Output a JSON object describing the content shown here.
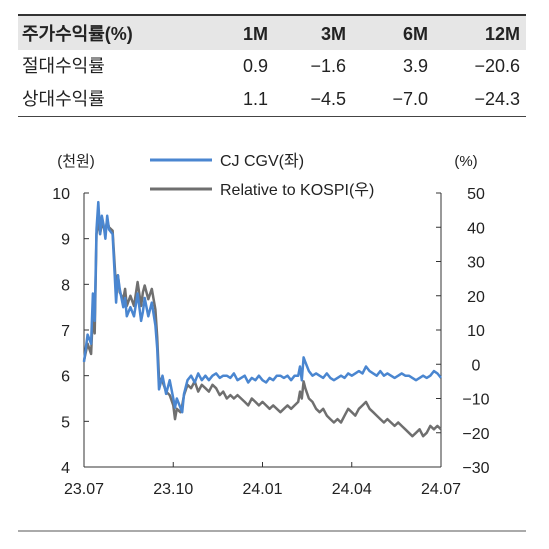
{
  "table": {
    "headers": [
      "주가수익률(%)",
      "1M",
      "3M",
      "6M",
      "12M"
    ],
    "rows": [
      {
        "label": "절대수익률",
        "values": [
          "0.9",
          "−1.6",
          "3.9",
          "−20.6"
        ]
      },
      {
        "label": "상대수익률",
        "values": [
          "1.1",
          "−4.5",
          "−7.0",
          "−24.3"
        ]
      }
    ]
  },
  "chart_data": {
    "type": "line",
    "left_unit": "(천원)",
    "right_unit": "(%)",
    "left_axis": {
      "range": [
        4,
        10
      ],
      "ticks": [
        "4",
        "5",
        "6",
        "7",
        "8",
        "9",
        "10"
      ]
    },
    "right_axis": {
      "range": [
        -30,
        50
      ],
      "ticks": [
        "−30",
        "−20",
        "−10",
        "0",
        "10",
        "20",
        "30",
        "40",
        "50"
      ]
    },
    "x_ticks": [
      {
        "label": "23.07",
        "t": 0.0
      },
      {
        "label": "23.10",
        "t": 0.25
      },
      {
        "label": "24.01",
        "t": 0.5
      },
      {
        "label": "24.04",
        "t": 0.75
      },
      {
        "label": "24.07",
        "t": 1.0
      }
    ],
    "series": [
      {
        "name": "CJ CGV(좌)",
        "axis": "left",
        "color": "#4a86d0",
        "points": [
          [
            0,
            6.3
          ],
          [
            0.01,
            6.9
          ],
          [
            0.02,
            6.7
          ],
          [
            0.025,
            7.8
          ],
          [
            0.03,
            7.2
          ],
          [
            0.035,
            9.2
          ],
          [
            0.04,
            9.8
          ],
          [
            0.045,
            9.1
          ],
          [
            0.05,
            9.5
          ],
          [
            0.055,
            9.3
          ],
          [
            0.06,
            9.0
          ],
          [
            0.065,
            9.5
          ],
          [
            0.07,
            9.2
          ],
          [
            0.08,
            9.1
          ],
          [
            0.09,
            7.6
          ],
          [
            0.095,
            8.2
          ],
          [
            0.1,
            7.9
          ],
          [
            0.11,
            7.5
          ],
          [
            0.115,
            7.7
          ],
          [
            0.12,
            7.3
          ],
          [
            0.13,
            7.5
          ],
          [
            0.14,
            7.3
          ],
          [
            0.15,
            7.8
          ],
          [
            0.16,
            7.2
          ],
          [
            0.165,
            7.4
          ],
          [
            0.17,
            7.7
          ],
          [
            0.18,
            7.3
          ],
          [
            0.19,
            7.6
          ],
          [
            0.2,
            7.1
          ],
          [
            0.205,
            6.6
          ],
          [
            0.21,
            5.7
          ],
          [
            0.22,
            6.0
          ],
          [
            0.23,
            5.6
          ],
          [
            0.24,
            5.9
          ],
          [
            0.25,
            5.5
          ],
          [
            0.255,
            5.3
          ],
          [
            0.26,
            5.5
          ],
          [
            0.27,
            5.3
          ],
          [
            0.275,
            5.2
          ],
          [
            0.28,
            5.6
          ],
          [
            0.29,
            5.9
          ],
          [
            0.3,
            6.0
          ],
          [
            0.31,
            5.85
          ],
          [
            0.32,
            6.05
          ],
          [
            0.33,
            5.9
          ],
          [
            0.34,
            6.0
          ],
          [
            0.35,
            5.9
          ],
          [
            0.36,
            6.0
          ],
          [
            0.37,
            6.05
          ],
          [
            0.38,
            5.95
          ],
          [
            0.39,
            6.0
          ],
          [
            0.4,
            6.0
          ],
          [
            0.41,
            5.95
          ],
          [
            0.42,
            6.05
          ],
          [
            0.43,
            5.9
          ],
          [
            0.44,
            5.95
          ],
          [
            0.45,
            6.0
          ],
          [
            0.46,
            5.85
          ],
          [
            0.47,
            5.95
          ],
          [
            0.48,
            5.9
          ],
          [
            0.49,
            6.0
          ],
          [
            0.5,
            5.9
          ],
          [
            0.51,
            5.85
          ],
          [
            0.52,
            5.95
          ],
          [
            0.53,
            5.9
          ],
          [
            0.54,
            6.0
          ],
          [
            0.55,
            6.0
          ],
          [
            0.56,
            5.95
          ],
          [
            0.57,
            6.0
          ],
          [
            0.58,
            5.9
          ],
          [
            0.59,
            6.0
          ],
          [
            0.6,
            6.0
          ],
          [
            0.605,
            6.2
          ],
          [
            0.61,
            5.9
          ],
          [
            0.615,
            6.4
          ],
          [
            0.62,
            6.3
          ],
          [
            0.63,
            6.1
          ],
          [
            0.64,
            6.0
          ],
          [
            0.65,
            6.05
          ],
          [
            0.66,
            6.0
          ],
          [
            0.67,
            5.95
          ],
          [
            0.68,
            6.05
          ],
          [
            0.69,
            5.95
          ],
          [
            0.7,
            5.9
          ],
          [
            0.71,
            5.95
          ],
          [
            0.72,
            6.0
          ],
          [
            0.73,
            5.95
          ],
          [
            0.74,
            6.05
          ],
          [
            0.75,
            6.0
          ],
          [
            0.76,
            6.05
          ],
          [
            0.77,
            6.1
          ],
          [
            0.78,
            6.05
          ],
          [
            0.79,
            6.2
          ],
          [
            0.8,
            6.1
          ],
          [
            0.81,
            6.05
          ],
          [
            0.82,
            6.0
          ],
          [
            0.83,
            6.1
          ],
          [
            0.84,
            6.0
          ],
          [
            0.85,
            6.05
          ],
          [
            0.86,
            6.0
          ],
          [
            0.87,
            5.95
          ],
          [
            0.88,
            6.0
          ],
          [
            0.89,
            6.05
          ],
          [
            0.9,
            6.0
          ],
          [
            0.91,
            6.0
          ],
          [
            0.92,
            5.95
          ],
          [
            0.93,
            5.9
          ],
          [
            0.94,
            5.95
          ],
          [
            0.95,
            6.0
          ],
          [
            0.96,
            5.95
          ],
          [
            0.97,
            6.0
          ],
          [
            0.98,
            6.1
          ],
          [
            0.99,
            6.05
          ],
          [
            1.0,
            5.95
          ]
        ]
      },
      {
        "name": "Relative to KOSPI(우)",
        "axis": "right",
        "color": "#6f6f6f",
        "points": [
          [
            0,
            1
          ],
          [
            0.01,
            6
          ],
          [
            0.02,
            3
          ],
          [
            0.025,
            15
          ],
          [
            0.03,
            9
          ],
          [
            0.035,
            38
          ],
          [
            0.04,
            42
          ],
          [
            0.045,
            38
          ],
          [
            0.05,
            41
          ],
          [
            0.055,
            40
          ],
          [
            0.06,
            39
          ],
          [
            0.065,
            42
          ],
          [
            0.07,
            40
          ],
          [
            0.08,
            39
          ],
          [
            0.09,
            22
          ],
          [
            0.095,
            26
          ],
          [
            0.1,
            21
          ],
          [
            0.11,
            19
          ],
          [
            0.115,
            22
          ],
          [
            0.12,
            17
          ],
          [
            0.13,
            20
          ],
          [
            0.14,
            17
          ],
          [
            0.15,
            24
          ],
          [
            0.16,
            17
          ],
          [
            0.165,
            21
          ],
          [
            0.17,
            23
          ],
          [
            0.18,
            19
          ],
          [
            0.19,
            22
          ],
          [
            0.2,
            16
          ],
          [
            0.205,
            8
          ],
          [
            0.21,
            -4
          ],
          [
            0.22,
            -5
          ],
          [
            0.23,
            -8
          ],
          [
            0.24,
            -9
          ],
          [
            0.25,
            -12
          ],
          [
            0.255,
            -16
          ],
          [
            0.26,
            -13
          ],
          [
            0.27,
            -14
          ],
          [
            0.275,
            -12
          ],
          [
            0.28,
            -9
          ],
          [
            0.29,
            -6
          ],
          [
            0.3,
            -7
          ],
          [
            0.31,
            -5
          ],
          [
            0.32,
            -8
          ],
          [
            0.33,
            -6
          ],
          [
            0.34,
            -7
          ],
          [
            0.35,
            -8
          ],
          [
            0.36,
            -6
          ],
          [
            0.37,
            -7
          ],
          [
            0.38,
            -9
          ],
          [
            0.39,
            -8
          ],
          [
            0.4,
            -10
          ],
          [
            0.41,
            -9
          ],
          [
            0.42,
            -10
          ],
          [
            0.43,
            -9
          ],
          [
            0.44,
            -10
          ],
          [
            0.45,
            -11
          ],
          [
            0.46,
            -12
          ],
          [
            0.47,
            -10
          ],
          [
            0.48,
            -11
          ],
          [
            0.49,
            -12
          ],
          [
            0.5,
            -11
          ],
          [
            0.51,
            -12
          ],
          [
            0.52,
            -13
          ],
          [
            0.53,
            -12
          ],
          [
            0.54,
            -13
          ],
          [
            0.55,
            -14
          ],
          [
            0.56,
            -13
          ],
          [
            0.57,
            -12
          ],
          [
            0.58,
            -13
          ],
          [
            0.59,
            -12
          ],
          [
            0.6,
            -11
          ],
          [
            0.605,
            -8
          ],
          [
            0.61,
            -10
          ],
          [
            0.615,
            -5
          ],
          [
            0.62,
            -7
          ],
          [
            0.63,
            -10
          ],
          [
            0.64,
            -11
          ],
          [
            0.65,
            -13
          ],
          [
            0.66,
            -14
          ],
          [
            0.67,
            -13
          ],
          [
            0.68,
            -15
          ],
          [
            0.69,
            -16
          ],
          [
            0.7,
            -17
          ],
          [
            0.71,
            -16
          ],
          [
            0.72,
            -17
          ],
          [
            0.73,
            -15
          ],
          [
            0.74,
            -13
          ],
          [
            0.75,
            -14
          ],
          [
            0.76,
            -15
          ],
          [
            0.77,
            -13
          ],
          [
            0.78,
            -12
          ],
          [
            0.79,
            -11
          ],
          [
            0.8,
            -13
          ],
          [
            0.81,
            -14
          ],
          [
            0.82,
            -15
          ],
          [
            0.83,
            -16
          ],
          [
            0.84,
            -17
          ],
          [
            0.85,
            -16
          ],
          [
            0.86,
            -17
          ],
          [
            0.87,
            -18
          ],
          [
            0.88,
            -17
          ],
          [
            0.89,
            -18
          ],
          [
            0.9,
            -19
          ],
          [
            0.91,
            -20
          ],
          [
            0.92,
            -21
          ],
          [
            0.93,
            -20
          ],
          [
            0.94,
            -19
          ],
          [
            0.95,
            -21
          ],
          [
            0.96,
            -20
          ],
          [
            0.97,
            -18
          ],
          [
            0.98,
            -19
          ],
          [
            0.99,
            -18
          ],
          [
            1.0,
            -19
          ]
        ]
      }
    ]
  }
}
